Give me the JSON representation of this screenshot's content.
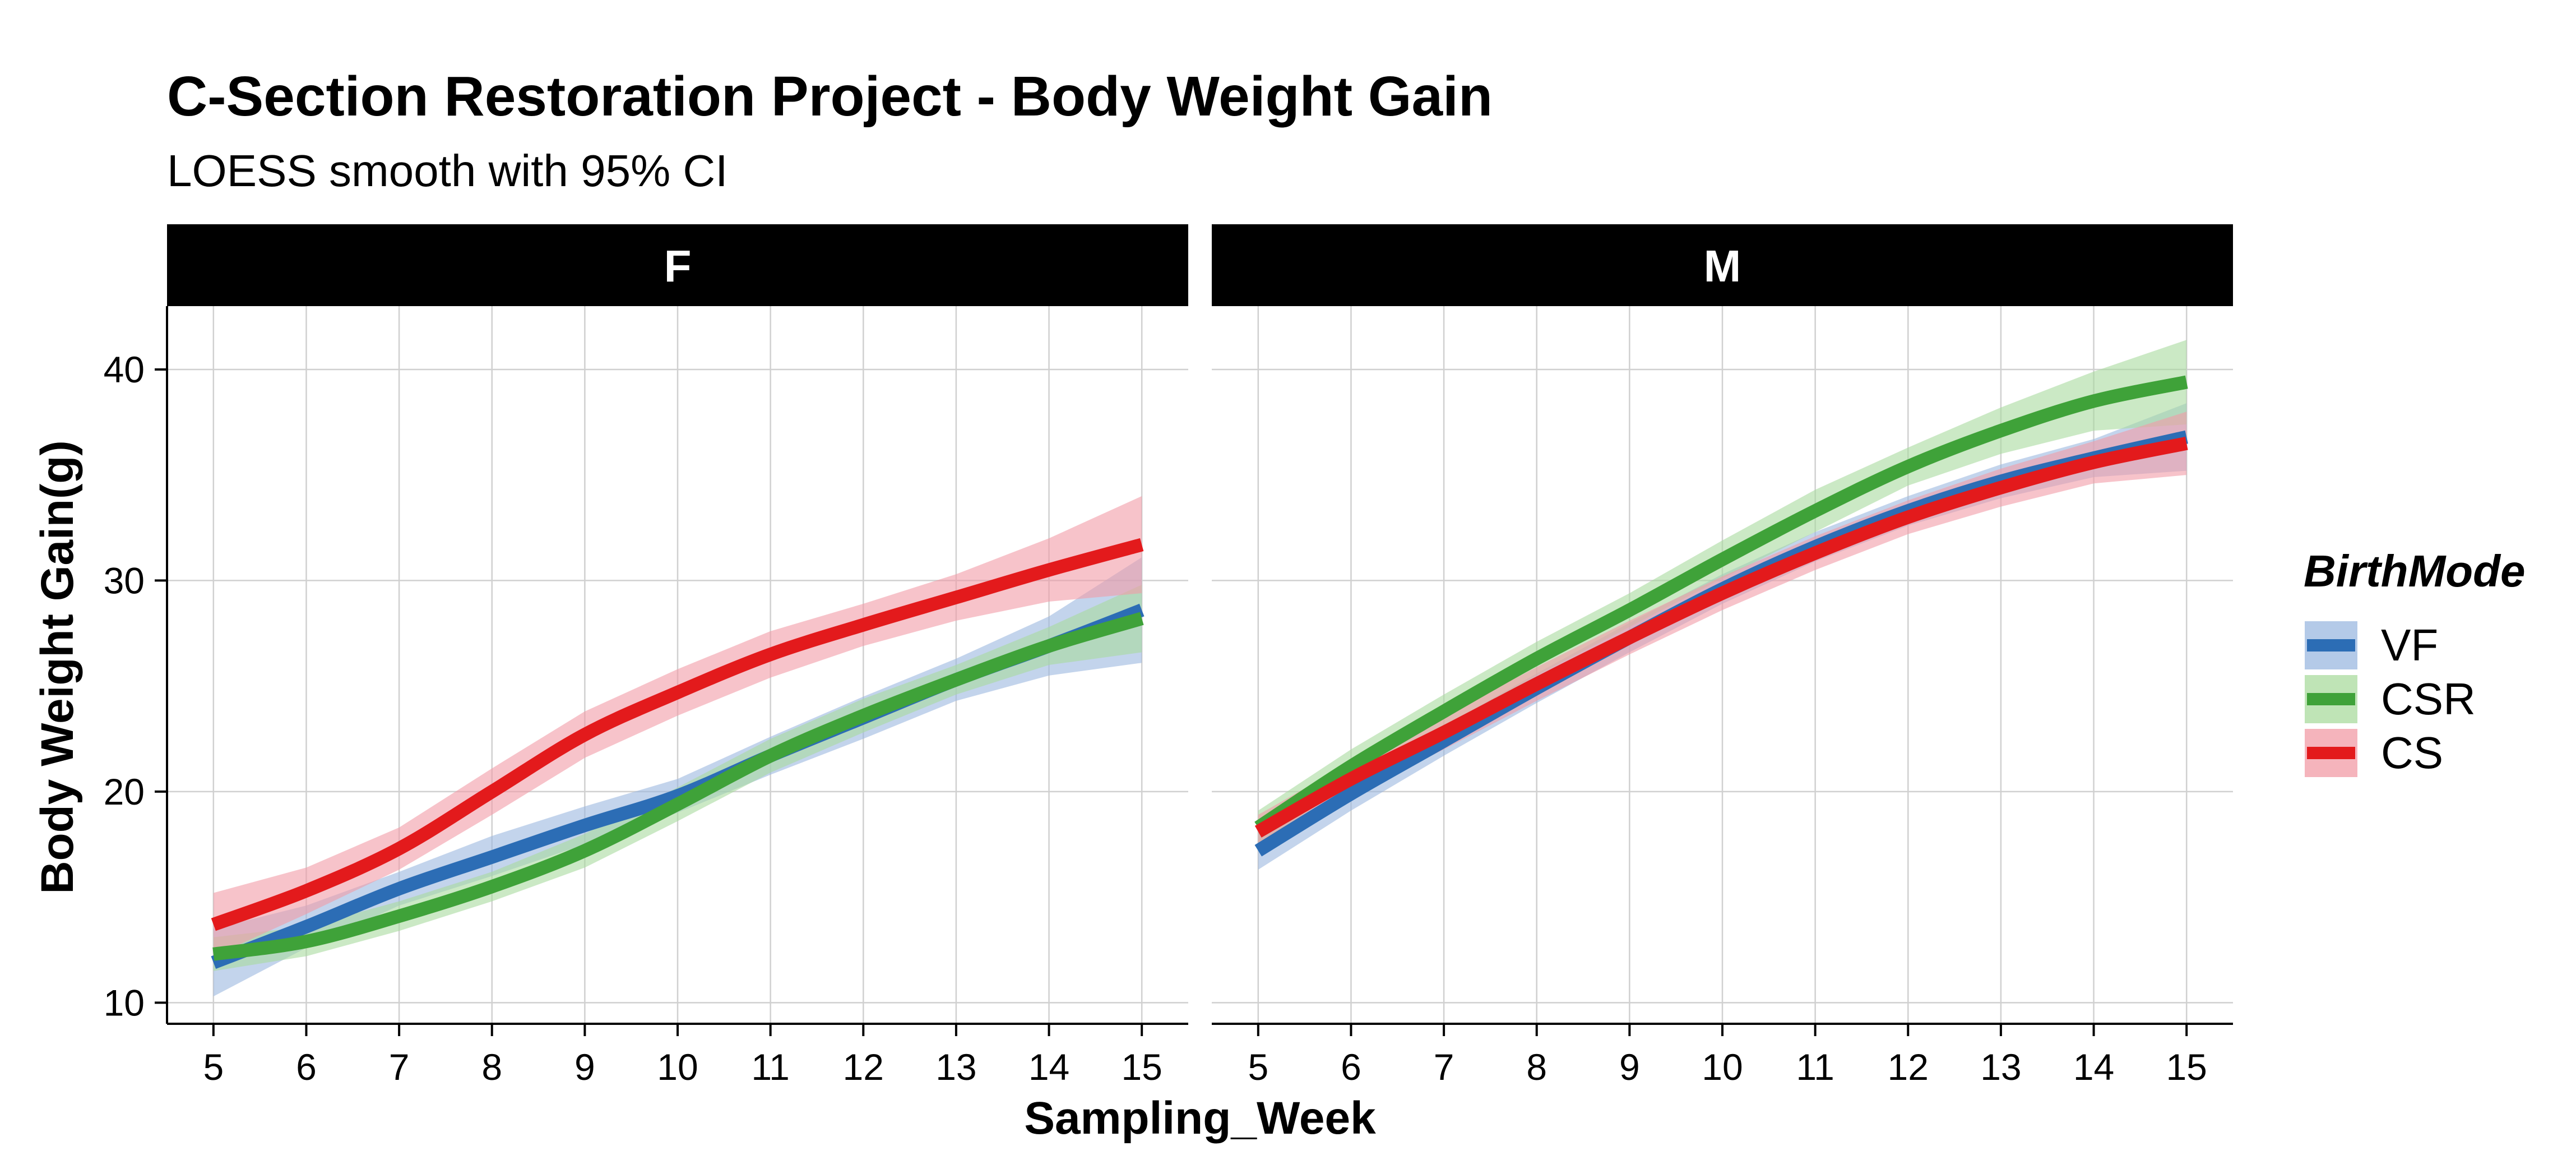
{
  "chart_data": {
    "type": "line",
    "title": "C-Section Restoration Project - Body Weight Gain",
    "subtitle": "LOESS smooth with 95% CI",
    "xlabel": "Sampling_Week",
    "ylabel": "Body Weight Gain(g)",
    "xlim": [
      4.5,
      15.5
    ],
    "ylim": [
      9,
      43
    ],
    "x_ticks": [
      5,
      6,
      7,
      8,
      9,
      10,
      11,
      12,
      13,
      14,
      15
    ],
    "y_ticks": [
      10,
      20,
      30,
      40
    ],
    "grid": true,
    "legend": {
      "title": "BirthMode",
      "position": "right",
      "entries": [
        "VF",
        "CSR",
        "CS"
      ]
    },
    "x": [
      5,
      6,
      7,
      8,
      9,
      10,
      11,
      12,
      13,
      14,
      15
    ],
    "facets": [
      {
        "label": "F",
        "series": [
          {
            "name": "VF",
            "color": "#2C6DB5",
            "fill": "#9BB8E0",
            "values": [
              11.9,
              13.6,
              15.4,
              16.9,
              18.4,
              19.8,
              21.7,
              23.5,
              25.3,
              26.9,
              28.6
            ],
            "lower": [
              10.3,
              12.6,
              14.6,
              16.0,
              17.5,
              19.0,
              20.8,
              22.5,
              24.3,
              25.5,
              26.1
            ],
            "upper": [
              13.5,
              14.6,
              16.2,
              17.9,
              19.3,
              20.6,
              22.6,
              24.5,
              26.3,
              28.3,
              31.1
            ]
          },
          {
            "name": "CSR",
            "color": "#3FA239",
            "fill": "#A9DB9E",
            "values": [
              12.3,
              12.9,
              14.1,
              15.5,
              17.2,
              19.4,
              21.7,
              23.6,
              25.3,
              26.9,
              28.2
            ],
            "lower": [
              11.5,
              12.2,
              13.4,
              14.8,
              16.4,
              18.6,
              20.9,
              22.8,
              24.6,
              26.0,
              26.6
            ],
            "upper": [
              13.1,
              13.6,
              14.8,
              16.2,
              18.0,
              20.2,
              22.5,
              24.4,
              26.0,
              27.8,
              29.8
            ]
          },
          {
            "name": "CS",
            "color": "#E31A1C",
            "fill": "#F29BA6",
            "values": [
              13.7,
              15.3,
              17.3,
              20.0,
              22.7,
              24.7,
              26.5,
              27.9,
              29.2,
              30.5,
              31.7
            ],
            "lower": [
              12.2,
              14.2,
              16.3,
              18.9,
              21.6,
              23.6,
              25.4,
              26.9,
              28.1,
              29.0,
              29.4
            ],
            "upper": [
              15.2,
              16.4,
              18.3,
              21.1,
              23.8,
              25.8,
              27.6,
              28.9,
              30.3,
              32.0,
              34.0
            ]
          }
        ]
      },
      {
        "label": "M",
        "series": [
          {
            "name": "VF",
            "color": "#2C6DB5",
            "fill": "#9BB8E0",
            "values": [
              17.2,
              19.9,
              22.4,
              24.9,
              27.3,
              29.6,
              31.6,
              33.3,
              34.7,
              35.8,
              36.8
            ],
            "lower": [
              16.3,
              19.1,
              21.7,
              24.2,
              26.6,
              28.9,
              30.9,
              32.6,
              33.9,
              34.9,
              35.2
            ],
            "upper": [
              18.1,
              20.7,
              23.1,
              25.6,
              28.0,
              30.3,
              32.3,
              34.0,
              35.5,
              36.7,
              38.4
            ]
          },
          {
            "name": "CSR",
            "color": "#3FA239",
            "fill": "#A9DB9E",
            "values": [
              18.3,
              21.2,
              23.8,
              26.3,
              28.6,
              31.0,
              33.3,
              35.4,
              37.1,
              38.5,
              39.4
            ],
            "lower": [
              17.5,
              20.4,
              23.0,
              25.5,
              27.8,
              30.1,
              32.3,
              34.5,
              36.0,
              37.1,
              37.4
            ],
            "upper": [
              19.1,
              22.0,
              24.6,
              27.1,
              29.4,
              31.9,
              34.3,
              36.3,
              38.2,
              39.9,
              41.4
            ]
          },
          {
            "name": "CS",
            "color": "#E31A1C",
            "fill": "#F29BA6",
            "values": [
              18.1,
              20.6,
              22.8,
              25.1,
              27.3,
              29.4,
              31.3,
              33.0,
              34.4,
              35.6,
              36.5
            ],
            "lower": [
              17.3,
              19.8,
              22.0,
              24.3,
              26.5,
              28.6,
              30.5,
              32.2,
              33.5,
              34.6,
              35.0
            ],
            "upper": [
              18.9,
              21.4,
              23.6,
              25.9,
              28.1,
              30.2,
              32.1,
              33.8,
              35.3,
              36.6,
              38.0
            ]
          }
        ]
      }
    ]
  }
}
